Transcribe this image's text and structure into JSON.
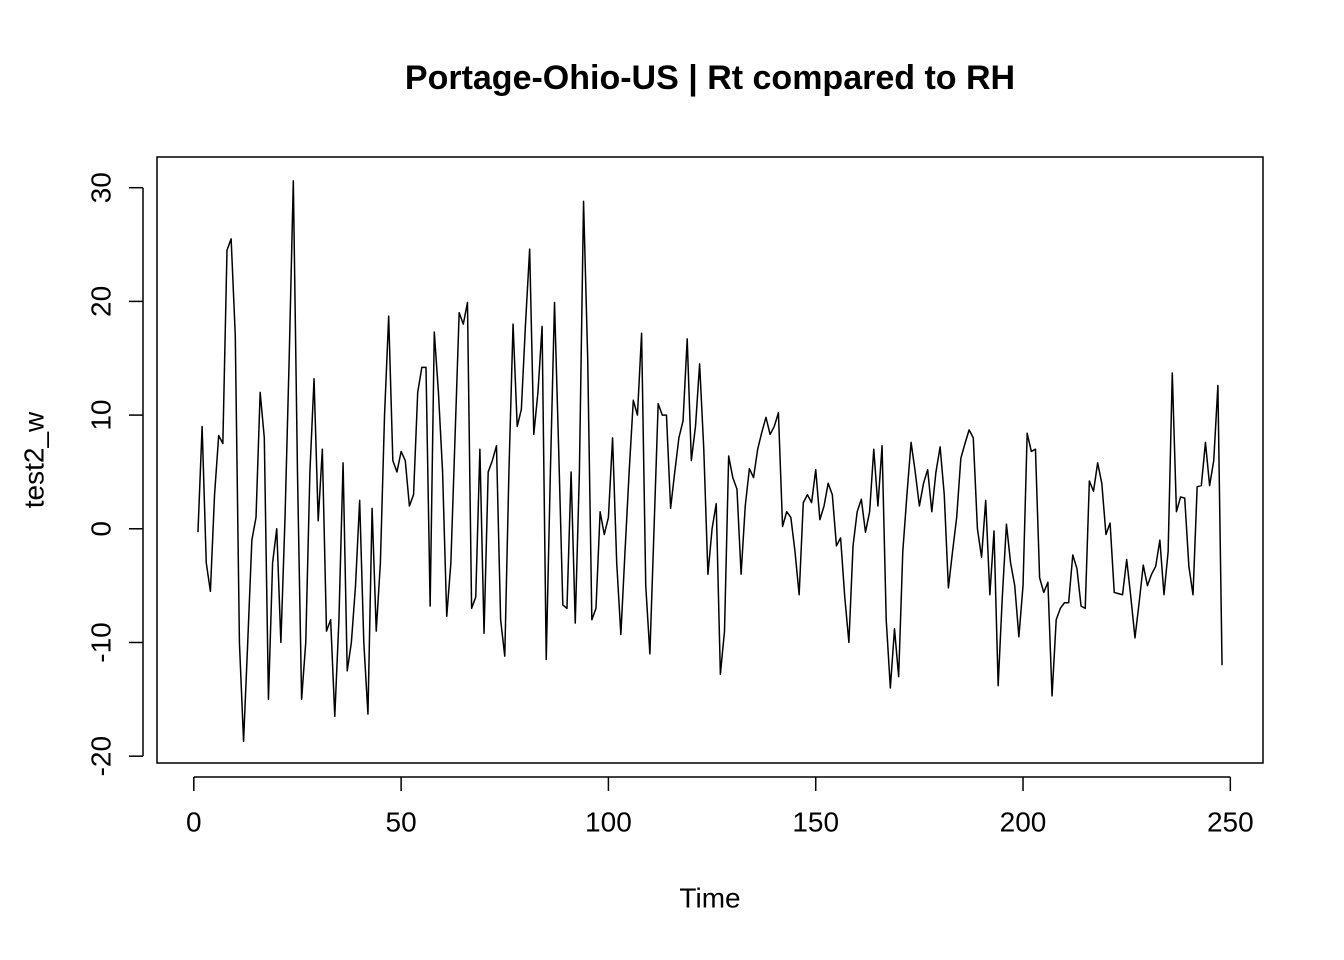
{
  "chart_data": {
    "type": "line",
    "title": "Portage-Ohio-US | Rt compared to RH",
    "x_label": "Time",
    "y_label": "test2_w",
    "xlim": [
      -8.88,
      257.88
    ],
    "ylim": [
      -20.6,
      32.7
    ],
    "xticks": [
      0,
      50,
      100,
      150,
      200,
      250
    ],
    "yticks": [
      -20,
      -10,
      0,
      10,
      20,
      30
    ],
    "x": [
      1,
      2,
      3,
      4,
      5,
      6,
      7,
      8,
      9,
      10,
      11,
      12,
      13,
      14,
      15,
      16,
      17,
      18,
      19,
      20,
      21,
      22,
      23,
      24,
      25,
      26,
      27,
      28,
      29,
      30,
      31,
      32,
      33,
      34,
      35,
      36,
      37,
      38,
      39,
      40,
      41,
      42,
      43,
      44,
      45,
      46,
      47,
      48,
      49,
      50,
      51,
      52,
      53,
      54,
      55,
      56,
      57,
      58,
      59,
      60,
      61,
      62,
      63,
      64,
      65,
      66,
      67,
      68,
      69,
      70,
      71,
      72,
      73,
      74,
      75,
      76,
      77,
      78,
      79,
      80,
      81,
      82,
      83,
      84,
      85,
      86,
      87,
      88,
      89,
      90,
      91,
      92,
      93,
      94,
      95,
      96,
      97,
      98,
      99,
      100,
      101,
      102,
      103,
      104,
      105,
      106,
      107,
      108,
      109,
      110,
      111,
      112,
      113,
      114,
      115,
      116,
      117,
      118,
      119,
      120,
      121,
      122,
      123,
      124,
      125,
      126,
      127,
      128,
      129,
      130,
      131,
      132,
      133,
      134,
      135,
      136,
      137,
      138,
      139,
      140,
      141,
      142,
      143,
      144,
      145,
      146,
      147,
      148,
      149,
      150,
      151,
      152,
      153,
      154,
      155,
      156,
      157,
      158,
      159,
      160,
      161,
      162,
      163,
      164,
      165,
      166,
      167,
      168,
      169,
      170,
      171,
      172,
      173,
      174,
      175,
      176,
      177,
      178,
      179,
      180,
      181,
      182,
      183,
      184,
      185,
      186,
      187,
      188,
      189,
      190,
      191,
      192,
      193,
      194,
      195,
      196,
      197,
      198,
      199,
      200,
      201,
      202,
      203,
      204,
      205,
      206,
      207,
      208,
      209,
      210,
      211,
      212,
      213,
      214,
      215,
      216,
      217,
      218,
      219,
      220,
      221,
      222,
      223,
      224,
      225,
      226,
      227,
      228,
      229,
      230,
      231,
      232,
      233,
      234,
      235,
      236,
      237,
      238,
      239,
      240,
      241,
      242,
      243,
      244,
      245,
      246,
      247,
      248
    ],
    "series": [
      {
        "color": "#000000",
        "values": [
          -0.3,
          9,
          -3,
          -5.5,
          3,
          8.2,
          7.5,
          24.5,
          25.5,
          17,
          -10,
          -18.7,
          -10,
          -1,
          1,
          12,
          8,
          -15,
          -3,
          0,
          -10,
          1,
          15,
          30.6,
          5,
          -15,
          -10,
          5,
          13.2,
          0.7,
          7,
          -9,
          -8,
          -16.5,
          -8,
          5.8,
          -12.5,
          -10,
          -5,
          2.5,
          -10,
          -16.3,
          1.8,
          -9,
          -3,
          10,
          18.7,
          6,
          5,
          6.8,
          6,
          2,
          3,
          12,
          14.2,
          14.2,
          -6.8,
          17.3,
          12,
          5,
          -7.7,
          -3,
          8,
          19,
          18,
          19.9,
          -7,
          -6,
          7,
          -9.2,
          5,
          6,
          7.3,
          -8,
          -11.2,
          5,
          18,
          9,
          10.5,
          18,
          24.6,
          8.3,
          12,
          17.8,
          -11.5,
          5,
          19.9,
          7,
          -6.7,
          -7,
          5,
          -8.3,
          5,
          28.8,
          15,
          -8,
          -7,
          1.5,
          -0.5,
          1,
          8,
          -3,
          -9.3,
          -2,
          5,
          11.3,
          10,
          17.2,
          -5,
          -11,
          0,
          11,
          10,
          10,
          1.8,
          5,
          8,
          9.5,
          16.7,
          6,
          9,
          14.5,
          7,
          -4,
          0,
          2.2,
          -12.8,
          -9,
          6.4,
          4.5,
          3.5,
          -4,
          2,
          5.3,
          4.5,
          7,
          8.5,
          9.8,
          8.3,
          9,
          10.2,
          0.2,
          1.5,
          1,
          -2,
          -5.8,
          2.3,
          3,
          2.3,
          5.2,
          0.8,
          2,
          4,
          3,
          -1.5,
          -0.8,
          -6,
          -10,
          -1.5,
          1.5,
          2.6,
          -0.3,
          1.5,
          7,
          2,
          7.3,
          -8,
          -14,
          -8.8,
          -13,
          -2,
          3,
          7.6,
          5,
          2,
          4,
          5.2,
          1.5,
          5,
          7.2,
          3,
          -5.2,
          -2,
          1,
          6.2,
          7.5,
          8.7,
          8,
          0,
          -2.5,
          2.5,
          -5.8,
          -0.2,
          -13.8,
          -6,
          0.4,
          -3,
          -5,
          -9.5,
          -5,
          8.4,
          6.8,
          7,
          -4.3,
          -5.6,
          -4.7,
          -14.7,
          -8,
          -7,
          -6.5,
          -6.5,
          -2.3,
          -3.5,
          -6.8,
          -7,
          4.2,
          3.3,
          5.8,
          4,
          -0.5,
          0.5,
          -5.6,
          -5.7,
          -5.8,
          -2.7,
          -6,
          -9.6,
          -6.5,
          -3.2,
          -5,
          -4,
          -3.3,
          -1,
          -5.8,
          -2,
          13.7,
          1.5,
          2.8,
          2.7,
          -3.3,
          -5.8,
          3.7,
          3.8,
          7.6,
          3.8,
          6,
          12.6,
          -12
        ]
      }
    ]
  }
}
